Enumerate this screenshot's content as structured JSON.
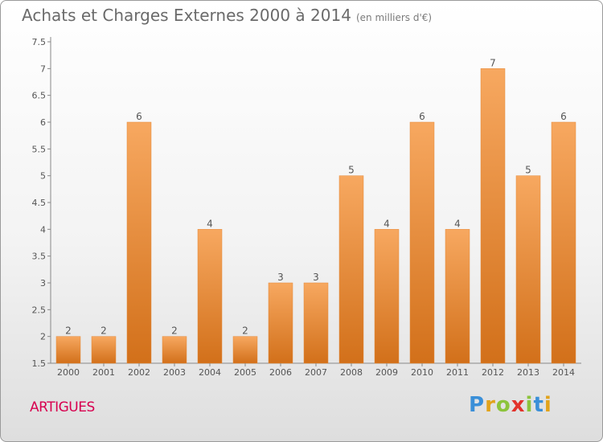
{
  "title": "Achats et Charges Externes 2000 à 2014",
  "subtitle": "(en milliers d'€)",
  "commune": "ARTIGUES",
  "logo": {
    "letters": [
      "P",
      "r",
      "o",
      "x",
      "i",
      "t",
      "i"
    ],
    "colors": [
      "#3a8fd8",
      "#e2a31b",
      "#8cc43c",
      "#e2322b",
      "#8cc43c",
      "#3a8fd8",
      "#e2a31b"
    ]
  },
  "colors": {
    "bar_light": "#f7a860",
    "bar_dark": "#d2701a",
    "axis": "#888888",
    "text": "#555555"
  },
  "chart_data": {
    "type": "bar",
    "categories": [
      "2000",
      "2001",
      "2002",
      "2003",
      "2004",
      "2005",
      "2006",
      "2007",
      "2008",
      "2009",
      "2010",
      "2011",
      "2012",
      "2013",
      "2014"
    ],
    "values": [
      2,
      2,
      6,
      2,
      4,
      2,
      3,
      3,
      5,
      4,
      6,
      4,
      7,
      5,
      6
    ],
    "ylim": [
      1.5,
      7.5
    ],
    "yticks": [
      1.5,
      2,
      2.5,
      3,
      3.5,
      4,
      4.5,
      5,
      5.5,
      6,
      6.5,
      7,
      7.5
    ],
    "grid": false,
    "data_labels": true
  }
}
